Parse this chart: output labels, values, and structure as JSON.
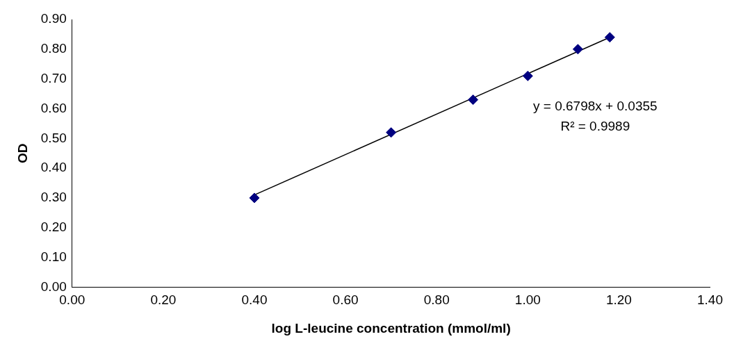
{
  "chart_data": {
    "type": "scatter",
    "xlabel": "log L-leucine concentration (mmol/ml)",
    "ylabel": "OD",
    "x": [
      0.4,
      0.7,
      0.88,
      1.0,
      1.11,
      1.18
    ],
    "series": [
      {
        "color": "#000080",
        "marker": "diamond",
        "values": [
          0.3,
          0.52,
          0.63,
          0.71,
          0.8,
          0.84
        ]
      },
      {
        "type": "line",
        "color": "#000000",
        "marker": "none",
        "line_style": "solid",
        "x": [
          0.4,
          1.18
        ],
        "values": [
          0.31,
          0.84
        ]
      }
    ],
    "annotations": [
      "y = 0.6798x + 0.0355",
      "R² = 0.9989"
    ],
    "xlim": [
      0,
      1.4
    ],
    "xticks": [
      {
        "value": 0,
        "label": "0.00"
      },
      {
        "value": 0.2,
        "label": "0.20"
      },
      {
        "value": 0.4,
        "label": "0.40"
      },
      {
        "value": 0.6,
        "label": "0.60"
      },
      {
        "value": 0.8,
        "label": "0.80"
      },
      {
        "value": 1,
        "label": "1.00"
      },
      {
        "value": 1.2,
        "label": "1.20"
      },
      {
        "value": 1.4,
        "label": "1.40"
      }
    ],
    "ylim": [
      0,
      0.9
    ],
    "yticks": [
      {
        "value": 0,
        "label": "0.00"
      },
      {
        "value": 0.1,
        "label": "0.10"
      },
      {
        "value": 0.2,
        "label": "0.20"
      },
      {
        "value": 0.3,
        "label": "0.30"
      },
      {
        "value": 0.4,
        "label": "0.40"
      },
      {
        "value": 0.5,
        "label": "0.50"
      },
      {
        "value": 0.6,
        "label": "0.60"
      },
      {
        "value": 0.7,
        "label": "0.70"
      },
      {
        "value": 0.8,
        "label": "0.80"
      },
      {
        "value": 0.9,
        "label": "0.90"
      }
    ],
    "grid": false,
    "legend": false
  }
}
